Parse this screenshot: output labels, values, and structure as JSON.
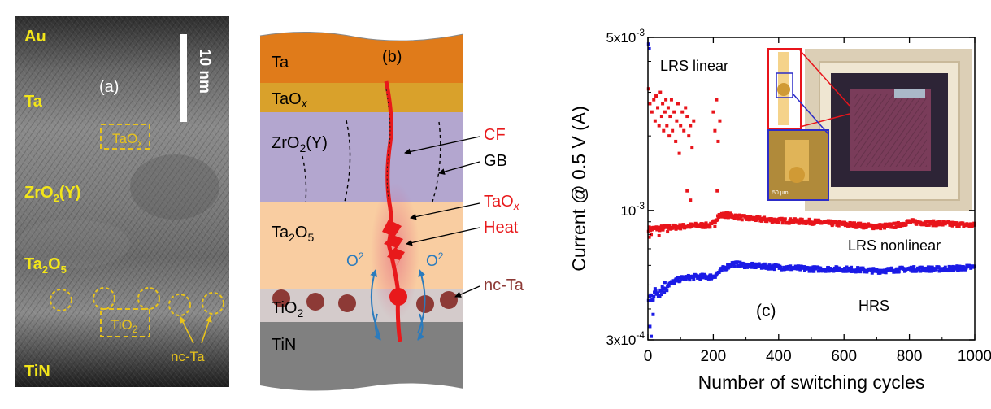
{
  "panel_a": {
    "label": "(a)",
    "scale_bar": "10 nm",
    "layers": {
      "au": "Au",
      "ta": "Ta",
      "taox": "TaO",
      "taox_sub": "x",
      "zro2": "ZrO",
      "zro2_sub": "2",
      "zro2_suffix": "(Y)",
      "ta2o5_a": "Ta",
      "ta2o5_sub1": "2",
      "ta2o5_b": "O",
      "ta2o5_sub2": "5",
      "tio2": "TiO",
      "tio2_sub": "2",
      "tin": "TiN",
      "nc_ta": "nc-Ta"
    },
    "colors": {
      "label": "#f2e51a",
      "annot": "#e8c31c"
    }
  },
  "panel_b": {
    "label": "(b)",
    "layers": {
      "ta": "Ta",
      "taox": "TaO",
      "taox_sub": "x",
      "zro2": "ZrO",
      "zro2_sub": "2",
      "zro2_suffix": "(Y)",
      "ta2o5_a": "Ta",
      "ta2o5_sub1": "2",
      "ta2o5_b": "O",
      "ta2o5_sub2": "5",
      "tio2": "TiO",
      "tio2_sub": "2",
      "tin": "TiN"
    },
    "annotations": {
      "cf": "CF",
      "gb": "GB",
      "taox": "TaO",
      "taox_sub": "x",
      "heat": "Heat",
      "o2_left": "O",
      "o2_left_sup": "2",
      "o2_right": "O",
      "o2_right_sup": "2",
      "nc_ta": "nc-Ta"
    },
    "colors": {
      "ta": "#e07b1a",
      "taox": "#d9a12b",
      "zro2": "#b3a6cf",
      "ta2o5": "#f9cda1",
      "tio2": "#d4cbcb",
      "tin": "#808080",
      "cf": "#e8191b",
      "arrow": "#2b7bbd",
      "nc_ta": "#8d3a36"
    }
  },
  "panel_c": {
    "label": "(c)",
    "inset_scale": "50 μm",
    "chart_data": {
      "type": "scatter",
      "xlabel": "Number of switching cycles",
      "ylabel": "Current @ 0.5 V (A)",
      "xlim": [
        0,
        1000
      ],
      "ylim": [
        0.0003,
        0.005
      ],
      "yscale": "log",
      "xticks": [
        0,
        200,
        400,
        600,
        800,
        1000
      ],
      "yticks": [
        {
          "base": "3x10",
          "exp": "-4",
          "value": 0.0003
        },
        {
          "base": "10",
          "exp": "-3",
          "value": 0.001
        },
        {
          "base": "5x10",
          "exp": "-3",
          "value": 0.005
        }
      ],
      "series": [
        {
          "name": "LRS linear",
          "color": "#e8141b",
          "x": [
            2,
            6,
            12,
            18,
            22,
            25,
            30,
            34,
            38,
            42,
            45,
            48,
            52,
            55,
            58,
            62,
            65,
            68,
            72,
            75,
            80,
            85,
            88,
            92,
            96,
            100,
            105,
            110,
            115,
            120,
            125,
            130,
            135,
            140,
            200,
            205,
            210,
            215,
            220
          ],
          "y": [
            0.0031,
            0.0027,
            0.0025,
            0.0028,
            0.0023,
            0.0029,
            0.0026,
            0.0022,
            0.003,
            0.0024,
            0.0027,
            0.0021,
            0.0025,
            0.0028,
            0.0022,
            0.0026,
            0.002,
            0.0024,
            0.0028,
            0.0021,
            0.0025,
            0.0019,
            0.0023,
            0.0027,
            0.0017,
            0.0022,
            0.0025,
            0.0021,
            0.0026,
            0.0024,
            0.002,
            0.0022,
            0.0018,
            0.0023,
            0.0025,
            0.0021,
            0.0028,
            0.0019,
            0.0023
          ]
        },
        {
          "name": "LRS nonlinear",
          "color": "#e8141b",
          "trend_x": [
            0,
            150,
            195,
            215,
            240,
            300,
            400,
            500,
            600,
            700,
            760,
            800,
            860,
            1000
          ],
          "trend_y": [
            0.00084,
            0.00087,
            0.00087,
            0.00095,
            0.00096,
            0.00093,
            0.00091,
            0.0009,
            0.00088,
            0.00086,
            0.00087,
            0.0009,
            0.00089,
            0.00087
          ]
        },
        {
          "name": "HRS",
          "color": "#1b1be6",
          "trend_x": [
            0,
            20,
            60,
            100,
            150,
            200,
            230,
            260,
            300,
            400,
            500,
            600,
            700,
            800,
            900,
            1000
          ],
          "trend_y": [
            0.00044,
            0.00046,
            0.0005,
            0.00053,
            0.00054,
            0.00054,
            0.00058,
            0.00061,
            0.0006,
            0.00059,
            0.00058,
            0.00058,
            0.00057,
            0.00058,
            0.00058,
            0.00059
          ]
        }
      ],
      "annotations": {
        "lrs_linear": "LRS linear",
        "lrs_nonlinear": "LRS nonlinear",
        "hrs": "HRS"
      }
    }
  }
}
